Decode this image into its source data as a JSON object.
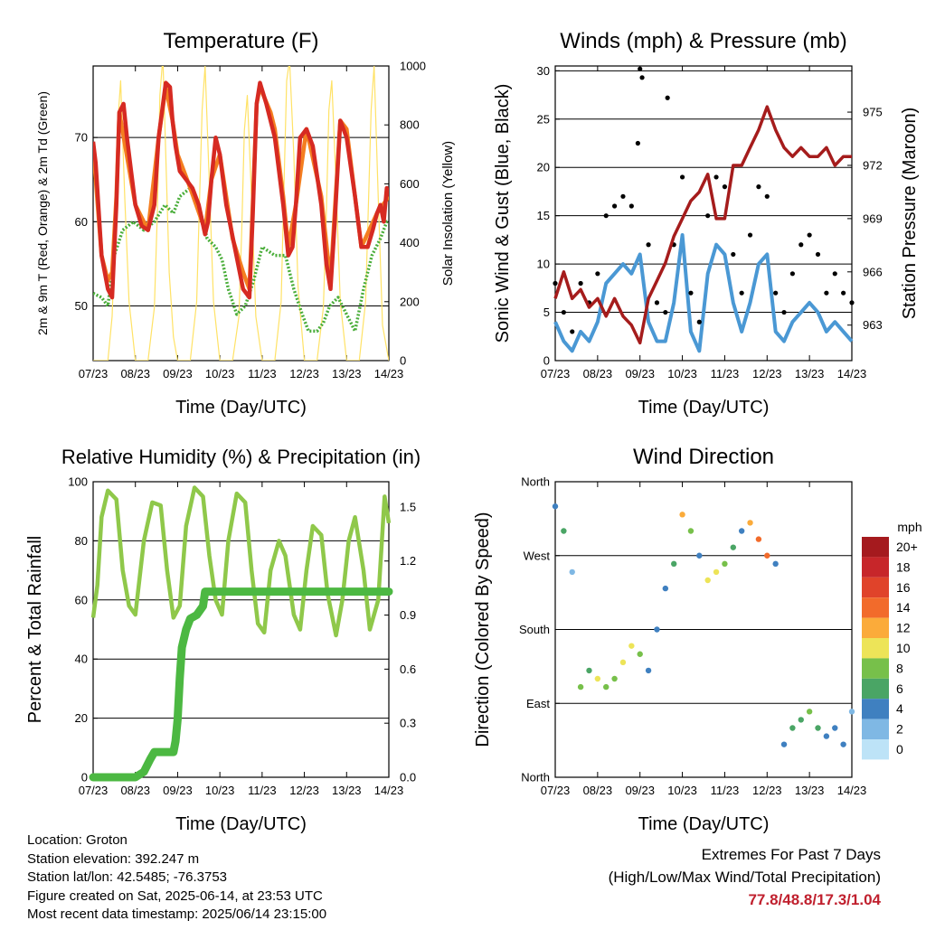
{
  "colors": {
    "red": "#d62a22",
    "orange": "#f47e20",
    "green": "#49ad39",
    "yellow": "#ffe266",
    "blue_wind": "#4a98d4",
    "gust": "#000000",
    "maroon": "#a51c1c",
    "rh": "#8fc84a",
    "rain": "#4cb842",
    "extremes": "#c0202e"
  },
  "footer": {
    "location": "Location: Groton",
    "elevation": "Station elevation: 392.247 m",
    "latlon": "Station lat/lon: 42.5485; -76.3753",
    "created": "Figure created on Sat, 2025-06-14, at 23:53 UTC",
    "recent": "Most recent data timestamp: 2025/06/14 23:15:00"
  },
  "extremes": {
    "title": "Extremes For Past 7 Days",
    "subtitle": "(High/Low/Max Wind/Total Precipitation)",
    "values": "77.8/48.8/17.3/1.04"
  },
  "chart_data": [
    {
      "id": "temperature",
      "type": "line",
      "title": "Temperature (F)",
      "xlabel": "Time (Day/UTC)",
      "ylabel": "2m & 9m T (Red, Orange) & 2m Td (Green)",
      "ylabel_right": "Solar Insolation (Yellow)",
      "x_ticks": [
        "07/23",
        "08/23",
        "09/23",
        "10/23",
        "11/23",
        "12/23",
        "13/23",
        "14/23"
      ],
      "xlim": [
        0,
        7
      ],
      "ylim": [
        43.5,
        78.5
      ],
      "y_ticks": [
        50,
        60,
        70
      ],
      "ylim_right": [
        0,
        1000
      ],
      "y_ticks_right": [
        0,
        200,
        400,
        600,
        800,
        1000
      ],
      "grid": true,
      "series": [
        {
          "name": "2m T",
          "color": "red",
          "axis": "left",
          "x": [
            0,
            0.06,
            0.2,
            0.35,
            0.45,
            0.55,
            0.62,
            0.72,
            0.8,
            0.9,
            1.0,
            1.15,
            1.3,
            1.45,
            1.55,
            1.72,
            1.82,
            1.88,
            1.95,
            2.05,
            2.2,
            2.35,
            2.5,
            2.65,
            2.72,
            2.8,
            2.9,
            3.0,
            3.15,
            3.35,
            3.55,
            3.7,
            3.78,
            3.87,
            3.95,
            4.1,
            4.3,
            4.5,
            4.62,
            4.72,
            4.8,
            4.9,
            5.05,
            5.2,
            5.4,
            5.52,
            5.62,
            5.72,
            5.85,
            6.0,
            6.2,
            6.35,
            6.5,
            6.62,
            6.72,
            6.8,
            6.88,
            6.95,
            7.0
          ],
          "y": [
            69.5,
            67,
            56,
            52,
            51,
            62,
            73,
            74,
            70,
            66,
            62,
            59.5,
            59,
            62,
            70,
            76.5,
            76,
            72,
            69,
            66,
            65,
            64,
            62,
            58.5,
            60,
            65,
            70,
            68,
            62,
            57,
            52,
            51,
            61,
            74,
            76.5,
            74,
            70,
            62,
            56,
            57,
            62,
            70,
            71,
            69,
            62,
            55,
            52,
            60,
            72,
            70,
            63,
            57,
            57,
            59,
            61,
            62,
            60,
            64,
            63
          ]
        },
        {
          "name": "9m T",
          "color": "orange",
          "axis": "left",
          "x": [
            0,
            0.2,
            0.35,
            0.45,
            0.55,
            0.62,
            1.0,
            1.3,
            1.55,
            1.72,
            1.88,
            2.0,
            2.3,
            2.65,
            2.8,
            3.0,
            3.3,
            3.55,
            3.7,
            3.87,
            3.95,
            4.2,
            4.3,
            4.5,
            4.62,
            4.8,
            5.05,
            5.4,
            5.55,
            5.62,
            5.85,
            6.0,
            6.35,
            6.72,
            7.0
          ],
          "y": [
            69,
            56,
            53,
            54,
            63,
            73,
            62,
            59,
            70,
            76,
            72,
            68,
            64,
            59,
            65,
            68,
            58,
            54,
            52,
            74,
            76,
            73,
            71,
            63,
            57,
            62,
            71,
            63,
            56,
            53,
            72,
            71,
            57,
            61,
            63
          ]
        },
        {
          "name": "2m Td",
          "color": "green",
          "axis": "left",
          "x": [
            0,
            0.2,
            0.35,
            0.5,
            0.7,
            0.95,
            1.2,
            1.45,
            1.7,
            1.9,
            2.05,
            2.3,
            2.5,
            2.7,
            2.9,
            3.05,
            3.2,
            3.4,
            3.6,
            3.8,
            4.0,
            4.3,
            4.55,
            4.75,
            4.95,
            5.1,
            5.3,
            5.45,
            5.6,
            5.8,
            6.0,
            6.2,
            6.4,
            6.6,
            6.8,
            6.95,
            7.0
          ],
          "y": [
            51.5,
            51,
            50,
            56,
            59,
            60,
            59,
            60,
            62,
            61,
            63,
            64,
            62,
            58,
            57,
            55.5,
            52,
            49,
            50,
            53,
            57,
            56,
            56,
            52,
            49,
            47,
            47,
            48,
            50,
            51,
            49,
            47,
            52,
            56,
            58,
            60,
            60
          ]
        },
        {
          "name": "Solar",
          "color": "yellow",
          "axis": "right",
          "x": [
            0,
            0.35,
            0.45,
            0.52,
            0.58,
            0.65,
            0.75,
            0.85,
            1.0,
            1.3,
            1.45,
            1.52,
            1.58,
            1.65,
            1.72,
            1.8,
            1.9,
            2.0,
            2.3,
            2.45,
            2.52,
            2.58,
            2.65,
            2.75,
            2.85,
            3.0,
            3.3,
            3.45,
            3.52,
            3.58,
            3.65,
            3.75,
            3.85,
            4.0,
            4.3,
            4.45,
            4.52,
            4.58,
            4.65,
            4.75,
            4.85,
            5.0,
            5.3,
            5.45,
            5.52,
            5.58,
            5.65,
            5.75,
            5.85,
            6.0,
            6.3,
            6.45,
            6.52,
            6.58,
            6.65,
            6.75,
            6.85,
            7.0
          ],
          "y": [
            0,
            0,
            150,
            450,
            800,
            950,
            550,
            200,
            0,
            0,
            180,
            500,
            900,
            1030,
            700,
            300,
            80,
            0,
            0,
            200,
            550,
            850,
            1000,
            600,
            200,
            0,
            0,
            150,
            450,
            780,
            900,
            550,
            150,
            0,
            0,
            200,
            600,
            950,
            1020,
            700,
            250,
            0,
            0,
            180,
            500,
            850,
            950,
            600,
            200,
            0,
            0,
            200,
            550,
            850,
            1000,
            550,
            120,
            0
          ]
        }
      ]
    },
    {
      "id": "winds",
      "type": "scatter",
      "title": "Winds (mph) & Pressure (mb)",
      "xlabel": "Time (Day/UTC)",
      "ylabel": "Sonic Wind & Gust (Blue, Black)",
      "ylabel_right": "Station Pressure (Maroon)",
      "x_ticks": [
        "07/23",
        "08/23",
        "09/23",
        "10/23",
        "11/23",
        "12/23",
        "13/23",
        "14/23"
      ],
      "xlim": [
        0,
        7
      ],
      "ylim": [
        0,
        30.5
      ],
      "y_ticks": [
        0,
        5,
        10,
        15,
        20,
        25,
        30
      ],
      "ylim_right": [
        961,
        977.6
      ],
      "y_ticks_right": [
        963,
        966,
        969,
        972,
        975
      ],
      "grid": true,
      "series": [
        {
          "name": "Sonic Wind",
          "color": "blue_wind",
          "axis": "left",
          "x": [
            0,
            0.2,
            0.4,
            0.6,
            0.8,
            1.0,
            1.2,
            1.4,
            1.6,
            1.8,
            2.0,
            2.2,
            2.4,
            2.6,
            2.8,
            3.0,
            3.2,
            3.4,
            3.6,
            3.8,
            4.0,
            4.2,
            4.4,
            4.6,
            4.8,
            5.0,
            5.2,
            5.4,
            5.6,
            5.8,
            6.0,
            6.2,
            6.4,
            6.6,
            6.8,
            7.0
          ],
          "y": [
            4,
            2,
            1,
            3,
            2,
            4,
            8,
            9,
            10,
            9,
            11,
            4,
            2,
            2,
            6,
            13,
            3,
            1,
            9,
            12,
            11,
            6,
            3,
            6,
            10,
            11,
            3,
            2,
            4,
            5,
            6,
            5,
            3,
            4,
            3,
            2
          ]
        },
        {
          "name": "Gust",
          "color": "gust",
          "axis": "left",
          "x": [
            0,
            0.2,
            0.4,
            0.6,
            0.8,
            1.0,
            1.2,
            1.4,
            1.6,
            1.8,
            1.95,
            2.0,
            2.05,
            2.2,
            2.4,
            2.6,
            2.65,
            2.8,
            3.0,
            3.2,
            3.4,
            3.6,
            3.8,
            4.0,
            4.2,
            4.4,
            4.6,
            4.8,
            5.0,
            5.2,
            5.4,
            5.6,
            5.8,
            6.0,
            6.2,
            6.4,
            6.6,
            6.8,
            7.0
          ],
          "y": [
            8,
            5,
            3,
            8,
            6,
            9,
            15,
            16,
            17,
            16,
            22.5,
            30.2,
            29.3,
            12,
            6,
            5,
            27.2,
            12,
            19,
            7,
            4,
            15,
            19,
            18,
            11,
            7,
            13,
            18,
            17,
            7,
            5,
            9,
            12,
            13,
            11,
            7,
            9,
            7,
            6
          ]
        },
        {
          "name": "Pressure",
          "color": "maroon",
          "axis": "right",
          "x": [
            0,
            0.2,
            0.4,
            0.6,
            0.8,
            1.0,
            1.2,
            1.4,
            1.6,
            1.8,
            2.0,
            2.2,
            2.4,
            2.6,
            2.8,
            3.0,
            3.2,
            3.4,
            3.6,
            3.8,
            4.0,
            4.2,
            4.4,
            4.6,
            4.8,
            5.0,
            5.2,
            5.4,
            5.6,
            5.8,
            6.0,
            6.2,
            6.4,
            6.6,
            6.8,
            7.0
          ],
          "y": [
            964.5,
            966,
            964.5,
            965,
            964,
            964.5,
            963.5,
            964.5,
            963.5,
            963,
            962,
            964.5,
            965.5,
            966.5,
            968,
            969,
            970,
            970.5,
            971.5,
            969,
            969,
            972,
            972,
            973,
            974,
            975.3,
            974,
            973,
            972.5,
            973,
            972.5,
            972.5,
            973,
            972,
            972.5,
            972.5
          ]
        }
      ]
    },
    {
      "id": "humidity",
      "type": "line",
      "title": "Relative Humidity (%) & Precipitation (in)",
      "xlabel": "Time (Day/UTC)",
      "ylabel": "Percent & Total Rainfall",
      "x_ticks": [
        "07/23",
        "08/23",
        "09/23",
        "10/23",
        "11/23",
        "12/23",
        "13/23",
        "14/23"
      ],
      "xlim": [
        0,
        7
      ],
      "ylim": [
        0,
        100
      ],
      "y_ticks": [
        0,
        20,
        40,
        60,
        80,
        100
      ],
      "ylim_right": [
        0,
        1.64
      ],
      "y_ticks_right": [
        "0.0",
        "0.3",
        "0.6",
        "0.9",
        "1.2",
        "1.5"
      ],
      "y_ticks_right_values": [
        0,
        0.3,
        0.6,
        0.9,
        1.2,
        1.5
      ],
      "grid": true,
      "series": [
        {
          "name": "RH",
          "color": "rh",
          "axis": "left",
          "x": [
            0,
            0.1,
            0.2,
            0.35,
            0.55,
            0.7,
            0.85,
            1.0,
            1.2,
            1.4,
            1.6,
            1.75,
            1.9,
            2.05,
            2.2,
            2.4,
            2.6,
            2.75,
            2.9,
            3.05,
            3.2,
            3.4,
            3.6,
            3.75,
            3.9,
            4.05,
            4.2,
            4.4,
            4.55,
            4.75,
            4.9,
            5.05,
            5.2,
            5.4,
            5.55,
            5.75,
            5.9,
            6.05,
            6.2,
            6.4,
            6.55,
            6.75,
            6.9,
            7.0
          ],
          "y": [
            54,
            65,
            88,
            97,
            94,
            70,
            58,
            55,
            80,
            93,
            92,
            70,
            54,
            58,
            85,
            98,
            95,
            75,
            60,
            55,
            80,
            96,
            93,
            70,
            52,
            49,
            70,
            80,
            75,
            55,
            50,
            70,
            85,
            82,
            62,
            48,
            60,
            80,
            88,
            70,
            50,
            60,
            95,
            86
          ]
        },
        {
          "name": "Precip",
          "color": "rain",
          "axis": "right",
          "x": [
            0,
            0.5,
            1.0,
            1.2,
            1.35,
            1.45,
            1.6,
            1.9,
            1.95,
            2.0,
            2.05,
            2.1,
            2.2,
            2.3,
            2.45,
            2.6,
            2.65,
            3.0,
            4.0,
            5.0,
            6.0,
            7.0
          ],
          "y": [
            0,
            0,
            0,
            0.03,
            0.1,
            0.14,
            0.14,
            0.14,
            0.2,
            0.32,
            0.55,
            0.72,
            0.82,
            0.88,
            0.9,
            0.95,
            1.03,
            1.03,
            1.03,
            1.03,
            1.03,
            1.03
          ]
        }
      ]
    },
    {
      "id": "direction",
      "type": "scatter",
      "title": "Wind Direction",
      "xlabel": "Time (Day/UTC)",
      "ylabel": "Direction (Colored By Speed)",
      "x_ticks": [
        "07/23",
        "08/23",
        "09/23",
        "10/23",
        "11/23",
        "12/23",
        "13/23",
        "14/23"
      ],
      "y_ticks": [
        "North",
        "East",
        "South",
        "West",
        "North"
      ],
      "ylim": [
        0,
        360
      ],
      "xlim": [
        0,
        7
      ],
      "grid": true,
      "legend_title": "mph",
      "legend_labels": [
        "20+",
        "18",
        "16",
        "14",
        "12",
        "10",
        "8",
        "6",
        "4",
        "2",
        "0"
      ],
      "legend_colors": [
        "#a51a1e",
        "#c7262a",
        "#e0432a",
        "#f26b2b",
        "#fbab3a",
        "#ede458",
        "#77c04a",
        "#4aa565",
        "#3f80c0",
        "#7fb8e4",
        "#bde3f7"
      ],
      "series": [
        {
          "name": "Direction",
          "x": [
            0,
            0.2,
            0.4,
            0.6,
            0.8,
            1.0,
            1.2,
            1.4,
            1.6,
            1.8,
            2.0,
            2.2,
            2.4,
            2.6,
            2.8,
            3.0,
            3.2,
            3.4,
            3.6,
            3.8,
            4.0,
            4.2,
            4.4,
            4.6,
            4.8,
            5.0,
            5.2,
            5.4,
            5.6,
            5.8,
            6.0,
            6.2,
            6.4,
            6.6,
            6.8,
            7.0
          ],
          "y": [
            330,
            300,
            250,
            110,
            130,
            120,
            110,
            120,
            140,
            160,
            150,
            130,
            180,
            230,
            260,
            320,
            300,
            270,
            240,
            250,
            260,
            280,
            300,
            310,
            290,
            270,
            260,
            40,
            60,
            70,
            80,
            60,
            50,
            60,
            40,
            80
          ],
          "speed": [
            4,
            6,
            2,
            8,
            6,
            10,
            8,
            8,
            10,
            9,
            8,
            4,
            3,
            4,
            6,
            12,
            8,
            3,
            9,
            10,
            8,
            6,
            4,
            12,
            14,
            13,
            4,
            4,
            5,
            6,
            8,
            5,
            3,
            4,
            3,
            2
          ]
        }
      ]
    }
  ]
}
